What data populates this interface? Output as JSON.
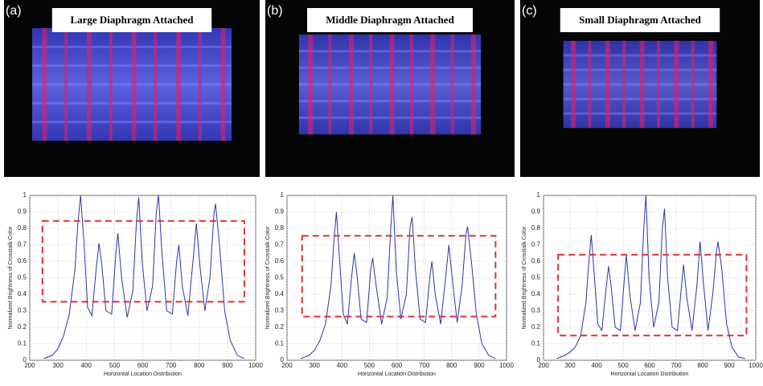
{
  "chart_data": [
    {
      "type": "line",
      "panel_label": "(a)",
      "photo_title": "Large Diaphragm Attached",
      "x": [
        250,
        280,
        300,
        320,
        340,
        360,
        370,
        380,
        392,
        405,
        420,
        435,
        445,
        455,
        470,
        490,
        505,
        512,
        525,
        545,
        565,
        578,
        586,
        598,
        615,
        635,
        648,
        656,
        668,
        685,
        705,
        720,
        728,
        740,
        760,
        778,
        790,
        802,
        820,
        838,
        852,
        858,
        872,
        890,
        910,
        935,
        960
      ],
      "series": [
        {
          "color": "#2f34a8",
          "values": [
            0.01,
            0.03,
            0.07,
            0.15,
            0.28,
            0.55,
            0.82,
            1.0,
            0.72,
            0.32,
            0.27,
            0.55,
            0.71,
            0.58,
            0.3,
            0.28,
            0.65,
            0.77,
            0.5,
            0.26,
            0.42,
            0.85,
            0.99,
            0.6,
            0.3,
            0.45,
            0.9,
            1.0,
            0.65,
            0.3,
            0.28,
            0.6,
            0.7,
            0.45,
            0.27,
            0.6,
            0.83,
            0.58,
            0.3,
            0.5,
            0.88,
            0.95,
            0.7,
            0.3,
            0.12,
            0.03,
            0.01
          ]
        }
      ],
      "xlim": [
        200,
        1000
      ],
      "ylim": [
        0,
        1
      ],
      "xticks": [
        200,
        300,
        400,
        500,
        600,
        700,
        800,
        900,
        1000
      ],
      "yticks": [
        0,
        0.1,
        0.2,
        0.3,
        0.4,
        0.5,
        0.6,
        0.7,
        0.8,
        0.9,
        1
      ],
      "xlabel": "Horizontal Location Distribution",
      "ylabel": "Normalized Brightness of Crosstalk Color",
      "grid": true,
      "box": {
        "x": [
          245,
          960
        ],
        "y": [
          0.355,
          0.845
        ],
        "color": "#e03030"
      }
    },
    {
      "type": "line",
      "panel_label": "(b)",
      "photo_title": "Middle Diaphragm Attached",
      "x": [
        250,
        280,
        300,
        320,
        340,
        360,
        370,
        380,
        392,
        405,
        420,
        435,
        445,
        455,
        470,
        490,
        505,
        512,
        525,
        545,
        565,
        578,
        586,
        598,
        615,
        635,
        648,
        656,
        668,
        685,
        705,
        720,
        728,
        740,
        760,
        778,
        790,
        802,
        820,
        838,
        852,
        858,
        872,
        890,
        910,
        935,
        960
      ],
      "series": [
        {
          "color": "#2f34a8",
          "values": [
            0.01,
            0.03,
            0.06,
            0.12,
            0.22,
            0.45,
            0.7,
            0.9,
            0.6,
            0.28,
            0.22,
            0.5,
            0.65,
            0.52,
            0.25,
            0.23,
            0.55,
            0.62,
            0.45,
            0.22,
            0.38,
            0.8,
            1.0,
            0.55,
            0.25,
            0.4,
            0.8,
            0.87,
            0.55,
            0.25,
            0.23,
            0.5,
            0.6,
            0.4,
            0.22,
            0.5,
            0.7,
            0.5,
            0.23,
            0.45,
            0.76,
            0.81,
            0.6,
            0.28,
            0.1,
            0.03,
            0.01
          ]
        }
      ],
      "xlim": [
        200,
        1000
      ],
      "ylim": [
        0,
        1
      ],
      "xticks": [
        200,
        300,
        400,
        500,
        600,
        700,
        800,
        900,
        1000
      ],
      "yticks": [
        0,
        0.1,
        0.2,
        0.3,
        0.4,
        0.5,
        0.6,
        0.7,
        0.8,
        0.9,
        1
      ],
      "xlabel": "Horizontal Location Distribution",
      "ylabel": "Normalized Brightness of Crosstalk Color",
      "grid": true,
      "box": {
        "x": [
          255,
          960
        ],
        "y": [
          0.265,
          0.755
        ],
        "color": "#e03030"
      }
    },
    {
      "type": "line",
      "panel_label": "(c)",
      "photo_title": "Small Diaphragm Attached",
      "x": [
        250,
        280,
        300,
        320,
        340,
        360,
        370,
        380,
        392,
        405,
        420,
        435,
        445,
        455,
        470,
        490,
        505,
        512,
        525,
        545,
        565,
        578,
        586,
        598,
        615,
        635,
        648,
        656,
        668,
        685,
        705,
        720,
        728,
        740,
        760,
        778,
        790,
        802,
        820,
        838,
        852,
        858,
        872,
        890,
        910,
        935,
        960
      ],
      "series": [
        {
          "color": "#2f34a8",
          "values": [
            0.01,
            0.03,
            0.05,
            0.08,
            0.15,
            0.35,
            0.58,
            0.76,
            0.5,
            0.22,
            0.18,
            0.42,
            0.57,
            0.45,
            0.2,
            0.18,
            0.5,
            0.64,
            0.4,
            0.18,
            0.35,
            0.8,
            1.0,
            0.5,
            0.2,
            0.35,
            0.8,
            0.92,
            0.5,
            0.2,
            0.18,
            0.45,
            0.58,
            0.38,
            0.18,
            0.45,
            0.72,
            0.48,
            0.18,
            0.4,
            0.66,
            0.72,
            0.55,
            0.22,
            0.08,
            0.02,
            0.01
          ]
        }
      ],
      "xlim": [
        200,
        1000
      ],
      "ylim": [
        0,
        1
      ],
      "xticks": [
        200,
        300,
        400,
        500,
        600,
        700,
        800,
        900,
        1000
      ],
      "yticks": [
        0,
        0.1,
        0.2,
        0.3,
        0.4,
        0.5,
        0.6,
        0.7,
        0.8,
        0.9,
        1
      ],
      "xlabel": "Horizontal Location Distribution",
      "ylabel": "Normalized Brightness of Crosstalk Color",
      "grid": true,
      "box": {
        "x": [
          255,
          965
        ],
        "y": [
          0.15,
          0.64
        ],
        "color": "#e03030"
      }
    }
  ]
}
